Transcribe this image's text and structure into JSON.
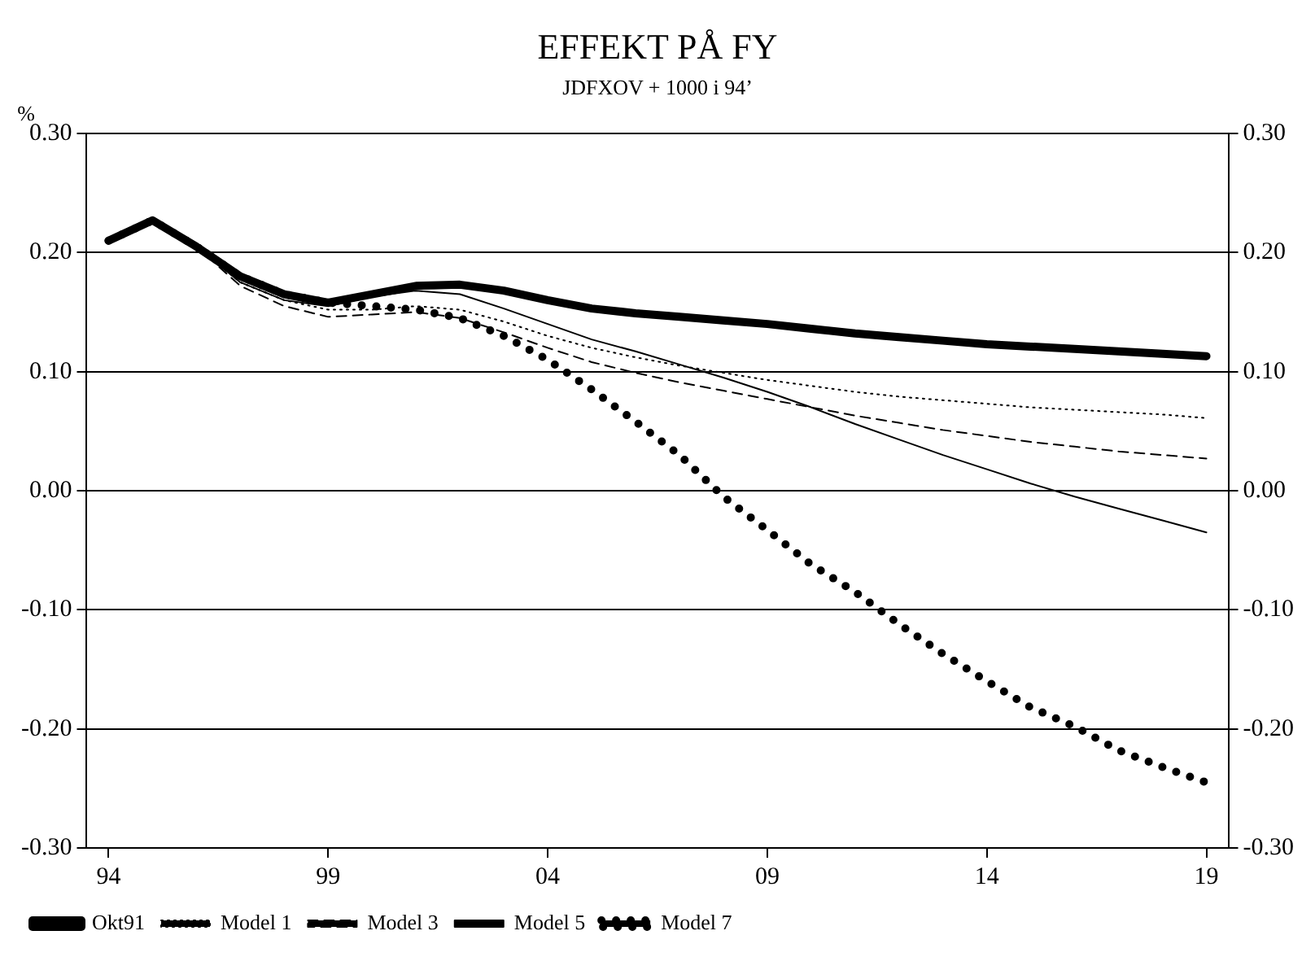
{
  "chart_data": {
    "type": "line",
    "title": "EFFEKT PÅ FY",
    "subtitle": "JDFXOV + 1000 i 94’",
    "ylabel": "%",
    "x": [
      1994,
      1995,
      1996,
      1997,
      1998,
      1999,
      2000,
      2001,
      2002,
      2003,
      2004,
      2005,
      2006,
      2007,
      2008,
      2009,
      2010,
      2011,
      2012,
      2013,
      2014,
      2015,
      2016,
      2017,
      2018,
      2019
    ],
    "xlim": [
      1993.5,
      2019.5
    ],
    "xticks": [
      {
        "value": 1994,
        "label": "94"
      },
      {
        "value": 1999,
        "label": "99"
      },
      {
        "value": 2004,
        "label": "04"
      },
      {
        "value": 2009,
        "label": "09"
      },
      {
        "value": 2014,
        "label": "14"
      },
      {
        "value": 2019,
        "label": "19"
      }
    ],
    "ylim": [
      -0.3,
      0.3
    ],
    "yticks": [
      {
        "value": -0.3,
        "label": "-0.30"
      },
      {
        "value": -0.2,
        "label": "-0.20"
      },
      {
        "value": -0.1,
        "label": "-0.10"
      },
      {
        "value": 0,
        "label": "0.00"
      },
      {
        "value": 0.1,
        "label": "0.10"
      },
      {
        "value": 0.2,
        "label": "0.20"
      },
      {
        "value": 0.3,
        "label": "0.30"
      }
    ],
    "y2lim": [
      -0.3,
      0.3
    ],
    "y2ticks": [
      {
        "value": -0.3,
        "label": "-0.30"
      },
      {
        "value": -0.2,
        "label": "-0.20"
      },
      {
        "value": -0.1,
        "label": "-0.10"
      },
      {
        "value": 0,
        "label": "0.00"
      },
      {
        "value": 0.1,
        "label": "0.10"
      },
      {
        "value": 0.2,
        "label": "0.20"
      },
      {
        "value": 0.3,
        "label": "0.30"
      }
    ],
    "grid": "y",
    "legend": "bottom",
    "marker": "none",
    "series": [
      {
        "name": "Okt91",
        "color": "#000000",
        "line_style": "solid",
        "values": [
          0.21,
          0.227,
          0.205,
          0.18,
          0.165,
          0.158,
          0.165,
          0.172,
          0.173,
          0.168,
          0.16,
          0.153,
          0.149,
          0.146,
          0.143,
          0.14,
          0.136,
          0.132,
          0.129,
          0.126,
          0.123,
          0.121,
          0.119,
          0.117,
          0.115,
          0.113
        ]
      },
      {
        "name": "Model 1",
        "color": "#000000",
        "line_style": "dotted",
        "values": [
          0.21,
          0.227,
          0.205,
          0.175,
          0.16,
          0.152,
          0.152,
          0.155,
          0.152,
          0.142,
          0.13,
          0.12,
          0.112,
          0.105,
          0.099,
          0.093,
          0.088,
          0.083,
          0.079,
          0.076,
          0.073,
          0.07,
          0.068,
          0.066,
          0.064,
          0.061
        ]
      },
      {
        "name": "Model 3",
        "color": "#000000",
        "line_style": "dashed",
        "values": [
          0.21,
          0.227,
          0.205,
          0.172,
          0.155,
          0.146,
          0.148,
          0.15,
          0.145,
          0.133,
          0.12,
          0.108,
          0.099,
          0.091,
          0.084,
          0.077,
          0.07,
          0.063,
          0.057,
          0.051,
          0.046,
          0.041,
          0.037,
          0.033,
          0.03,
          0.027
        ]
      },
      {
        "name": "Model 5",
        "color": "#000000",
        "line_style": "solid",
        "values": [
          0.21,
          0.227,
          0.205,
          0.175,
          0.16,
          0.155,
          0.163,
          0.168,
          0.165,
          0.153,
          0.14,
          0.127,
          0.117,
          0.106,
          0.095,
          0.083,
          0.07,
          0.056,
          0.043,
          0.03,
          0.018,
          0.006,
          -0.005,
          -0.015,
          -0.025,
          -0.035
        ]
      },
      {
        "name": "Model 7",
        "color": "#000000",
        "line_style": "dotted",
        "values": [
          0.21,
          0.227,
          0.205,
          0.18,
          0.165,
          0.158,
          0.155,
          0.152,
          0.145,
          0.13,
          0.11,
          0.085,
          0.058,
          0.03,
          -0.005,
          -0.033,
          -0.062,
          -0.085,
          -0.112,
          -0.137,
          -0.16,
          -0.182,
          -0.198,
          -0.218,
          -0.232,
          -0.245
        ]
      }
    ]
  }
}
